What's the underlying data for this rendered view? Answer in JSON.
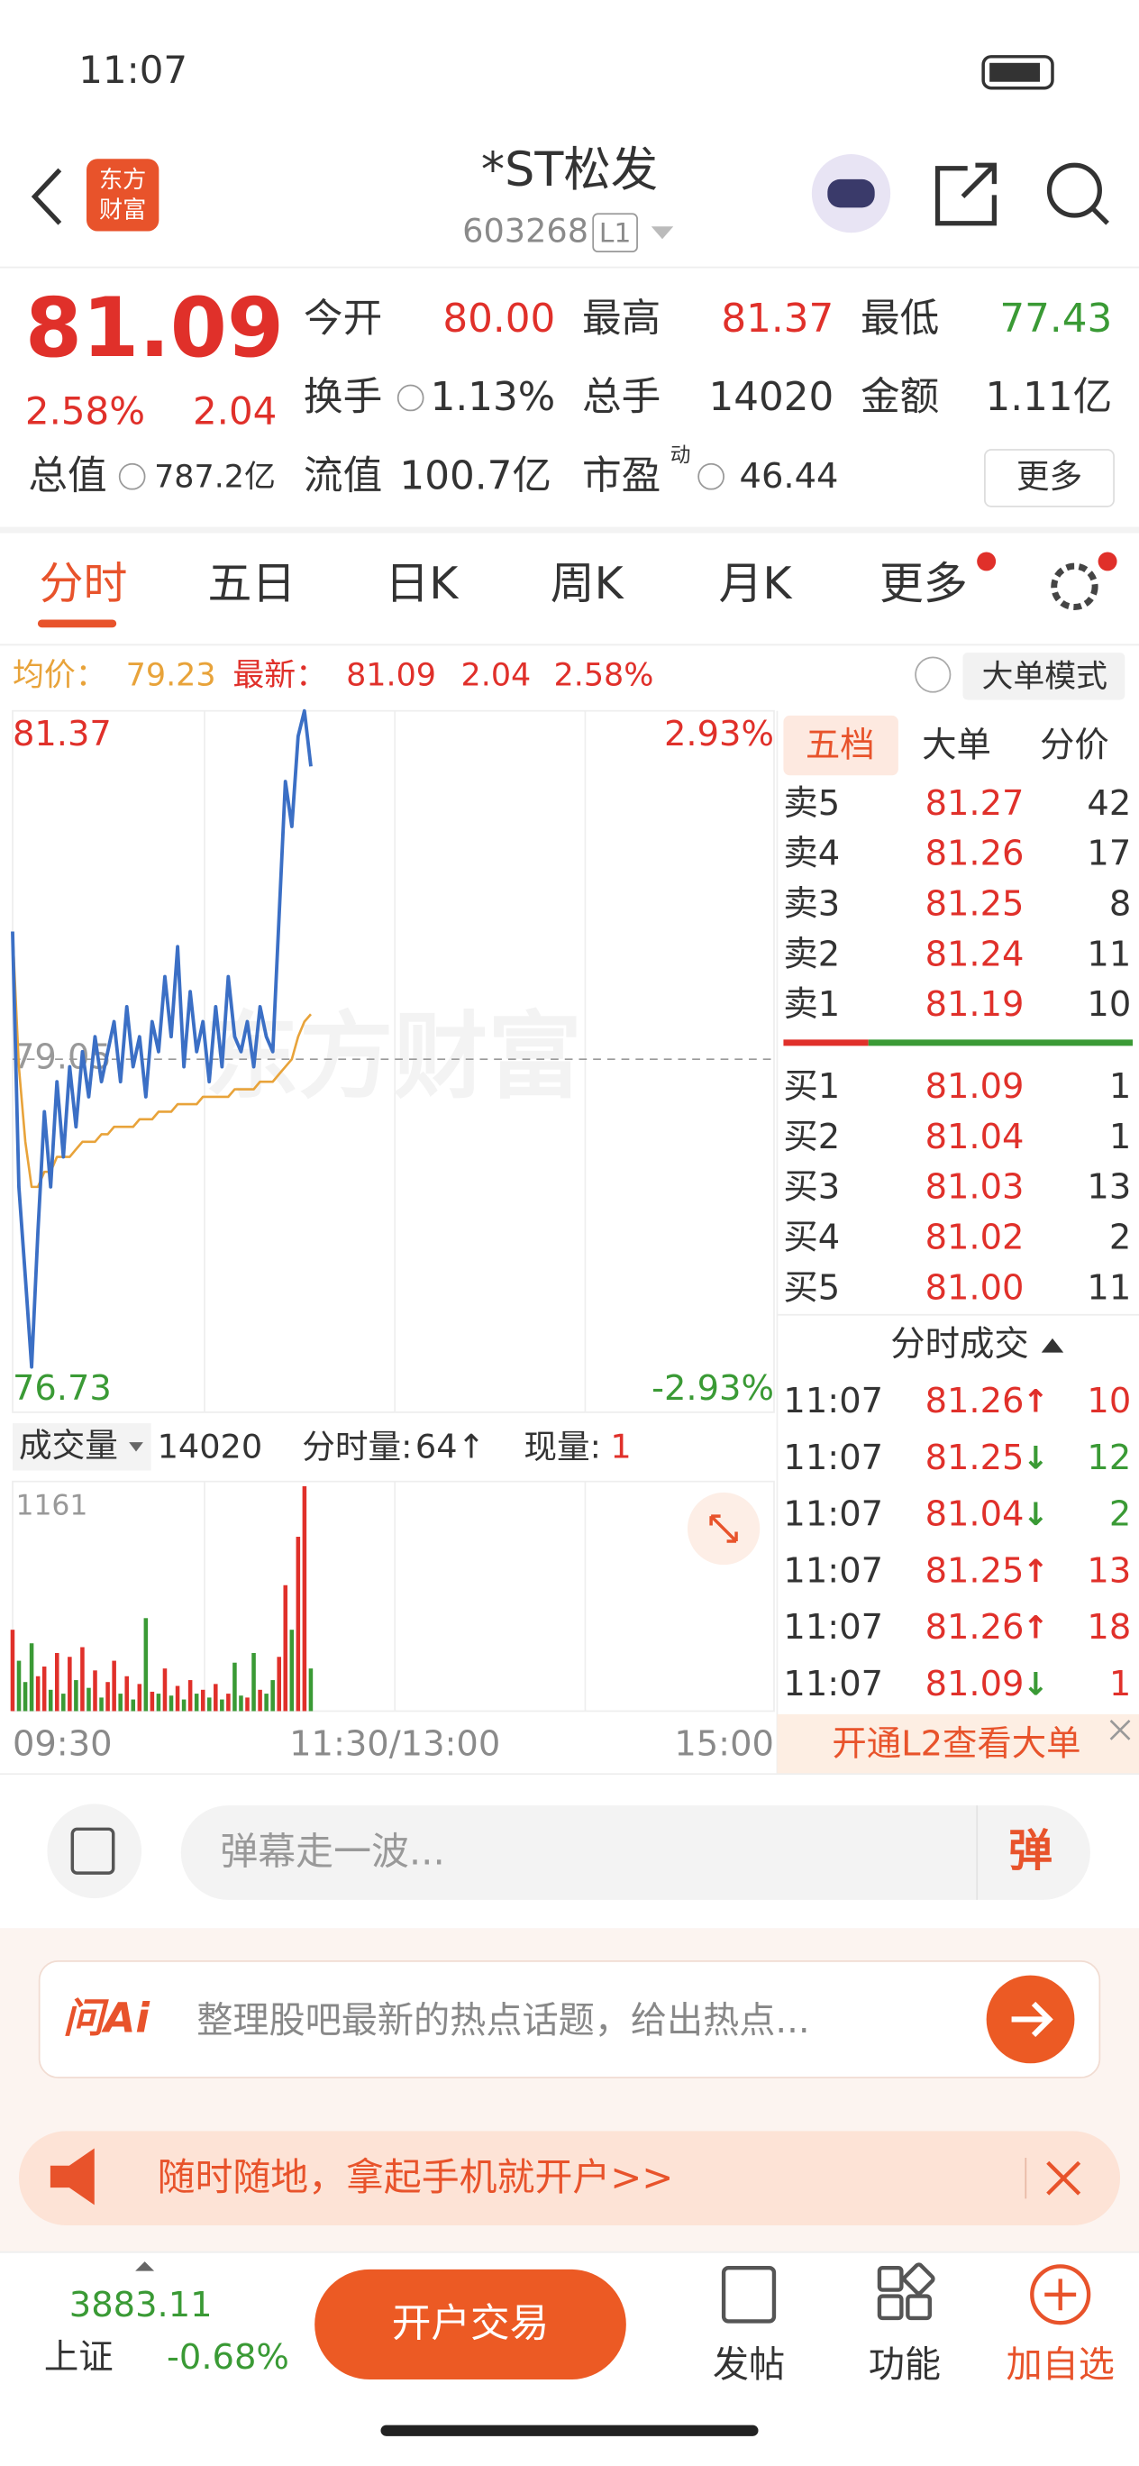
{
  "status_bar": {
    "time": "11:07"
  },
  "header": {
    "logo": [
      "东方",
      "财富"
    ],
    "title": "*ST松发",
    "code": "603268",
    "level": "L1"
  },
  "quote": {
    "price": "81.09",
    "change_pct": "2.58%",
    "change": "2.04",
    "open": {
      "label": "今开",
      "value": "80.00"
    },
    "high": {
      "label": "最高",
      "value": "81.37"
    },
    "low": {
      "label": "最低",
      "value": "77.43"
    },
    "turnover": {
      "label": "换手",
      "value": "1.13%"
    },
    "volume": {
      "label": "总手",
      "value": "14020"
    },
    "amount": {
      "label": "金额",
      "value": "1.11亿"
    },
    "total_cap": {
      "label": "总值",
      "value": "787.2亿"
    },
    "float_cap": {
      "label": "流值",
      "value": "100.7亿"
    },
    "pe": {
      "label": "市盈",
      "superscript": "动",
      "value": "46.44"
    },
    "more": "更多"
  },
  "tabs": [
    "分时",
    "五日",
    "日K",
    "周K",
    "月K",
    "更多"
  ],
  "info_bar": {
    "avg_label": "均价：",
    "avg": "79.23",
    "latest_label": "最新：",
    "latest": "81.09",
    "change": "2.04",
    "change_pct": "2.58%",
    "mode": "大单模式"
  },
  "intraday": {
    "watermark": "东方财富",
    "ylim": [
      76.73,
      81.37
    ],
    "yticks": [
      76.73,
      79.05,
      81.37
    ],
    "pct_high": "2.93%",
    "pct_low": "-2.93%",
    "price_color": "#3b6fc5",
    "avg_color": "#e8a33a",
    "price": [
      79.9,
      78.2,
      77.6,
      77.0,
      77.9,
      78.7,
      78.2,
      78.9,
      78.4,
      79.0,
      78.6,
      79.1,
      78.8,
      79.2,
      78.9,
      79.1,
      79.3,
      78.9,
      79.4,
      79.0,
      79.2,
      78.8,
      79.3,
      79.1,
      79.6,
      79.2,
      79.8,
      79.0,
      79.5,
      79.1,
      79.3,
      78.9,
      79.4,
      79.0,
      79.6,
      79.2,
      79.1,
      79.3,
      79.0,
      79.4,
      79.2,
      79.1,
      80.0,
      80.9,
      80.6,
      81.2,
      81.37,
      81.0
    ],
    "avg": [
      79.9,
      79.0,
      78.5,
      78.2,
      78.2,
      78.3,
      78.3,
      78.4,
      78.4,
      78.4,
      78.45,
      78.5,
      78.5,
      78.5,
      78.55,
      78.55,
      78.6,
      78.6,
      78.6,
      78.6,
      78.65,
      78.65,
      78.65,
      78.7,
      78.7,
      78.7,
      78.75,
      78.75,
      78.75,
      78.75,
      78.8,
      78.8,
      78.8,
      78.8,
      78.8,
      78.85,
      78.85,
      78.85,
      78.85,
      78.9,
      78.9,
      78.9,
      78.95,
      79.0,
      79.05,
      79.2,
      79.3,
      79.35
    ],
    "volume_label": "成交量",
    "volume_total": "14020",
    "minute_vol_label": "分时量:",
    "minute_vol": "64↑",
    "current_vol_label": "现量:",
    "current_vol": "1",
    "vol_ylim": [
      0,
      1161
    ],
    "volume": [
      420,
      260,
      150,
      350,
      180,
      230,
      110,
      300,
      90,
      280,
      160,
      330,
      120,
      210,
      70,
      150,
      260,
      90,
      180,
      60,
      140,
      480,
      100,
      90,
      220,
      80,
      130,
      60,
      160,
      90,
      110,
      70,
      140,
      60,
      90,
      250,
      80,
      70,
      300,
      110,
      90,
      160,
      280,
      650,
      420,
      900,
      1161,
      220
    ],
    "xlabels": [
      "09:30",
      "11:30/13:00",
      "15:00"
    ]
  },
  "order_book": {
    "tabs": [
      "五档",
      "大单",
      "分价"
    ],
    "asks": [
      [
        "卖5",
        "81.27",
        "42"
      ],
      [
        "卖4",
        "81.26",
        "17"
      ],
      [
        "卖3",
        "81.25",
        "8"
      ],
      [
        "卖2",
        "81.24",
        "11"
      ],
      [
        "卖1",
        "81.19",
        "10"
      ]
    ],
    "bids": [
      [
        "买1",
        "81.09",
        "1"
      ],
      [
        "买2",
        "81.04",
        "1"
      ],
      [
        "买3",
        "81.03",
        "13"
      ],
      [
        "买4",
        "81.02",
        "2"
      ],
      [
        "买5",
        "81.00",
        "11"
      ]
    ],
    "trades_title": "分时成交",
    "trades": [
      {
        "time": "11:07",
        "price": "81.26",
        "dir": "↑",
        "volume": "10"
      },
      {
        "time": "11:07",
        "price": "81.25",
        "dir": "↓",
        "volume": "12"
      },
      {
        "time": "11:07",
        "price": "81.04",
        "dir": "↓",
        "volume": "2"
      },
      {
        "time": "11:07",
        "price": "81.25",
        "dir": "↑",
        "volume": "13"
      },
      {
        "time": "11:07",
        "price": "81.26",
        "dir": "↑",
        "volume": "18"
      },
      {
        "time": "11:07",
        "price": "81.09",
        "dir": "↓",
        "volume": "1"
      }
    ],
    "l2": "开通L2查看大单"
  },
  "comment": {
    "placeholder": "弹幕走一波...",
    "button": "弹"
  },
  "ai": {
    "brand": "问Ai",
    "prompt": "整理股吧最新的热点话题，给出热点..."
  },
  "banner": {
    "text": "随时随地，拿起手机就开户>>"
  },
  "footer": {
    "index_value": "3883.11",
    "index_name": "上证",
    "index_change": "-0.68%",
    "trade": "开户交易",
    "nav": [
      "发帖",
      "功能",
      "加自选"
    ]
  }
}
